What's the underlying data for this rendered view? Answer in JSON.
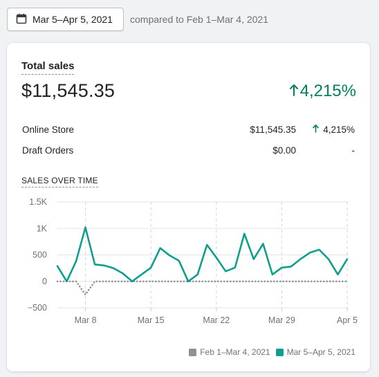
{
  "date_picker": {
    "label": "Mar 5–Apr 5, 2021",
    "icon": "calendar-icon"
  },
  "compare_text": "compared to Feb 1–Mar 4, 2021",
  "card": {
    "title": "Total sales",
    "total": "$11,545.35",
    "change": "4,215%",
    "change_color": "#007f5f",
    "rows": [
      {
        "label": "Online Store",
        "amount": "$11,545.35",
        "change": "4,215%",
        "trend": "up"
      },
      {
        "label": "Draft Orders",
        "amount": "$0.00",
        "change": "-",
        "trend": "none"
      }
    ],
    "section_title": "SALES OVER TIME"
  },
  "legend": [
    {
      "label": "Feb 1–Mar 4, 2021",
      "color": "#8c9196"
    },
    {
      "label": "Mar 5–Apr 5, 2021",
      "color": "#0e9e8e"
    }
  ],
  "chart_data": {
    "type": "line",
    "ylim": [
      -500,
      1500
    ],
    "yticks": [
      -500,
      0,
      500,
      1000,
      1500
    ],
    "ytick_labels": [
      "−500",
      "0",
      "500",
      "1K",
      "1.5K"
    ],
    "xtick_labels": [
      "Mar 8",
      "Mar 15",
      "Mar 22",
      "Mar 29",
      "Apr 5"
    ],
    "xtick_positions": [
      3,
      10,
      17,
      24,
      31
    ],
    "x_count": 32,
    "series": [
      {
        "name": "Feb 1–Mar 4, 2021",
        "color": "#8c9196",
        "style": "dotted",
        "values": [
          0,
          0,
          0,
          -250,
          0,
          0,
          0,
          0,
          0,
          0,
          0,
          0,
          0,
          0,
          0,
          0,
          0,
          0,
          0,
          0,
          0,
          0,
          0,
          0,
          0,
          0,
          0,
          0,
          0,
          0,
          0,
          0
        ]
      },
      {
        "name": "Mar 5–Apr 5, 2021",
        "color": "#0e9e8e",
        "style": "solid",
        "values": [
          290,
          0,
          380,
          1020,
          320,
          300,
          250,
          150,
          0,
          130,
          260,
          630,
          490,
          390,
          0,
          130,
          690,
          450,
          190,
          260,
          900,
          420,
          710,
          130,
          260,
          280,
          420,
          540,
          600,
          420,
          130,
          420
        ]
      }
    ]
  }
}
